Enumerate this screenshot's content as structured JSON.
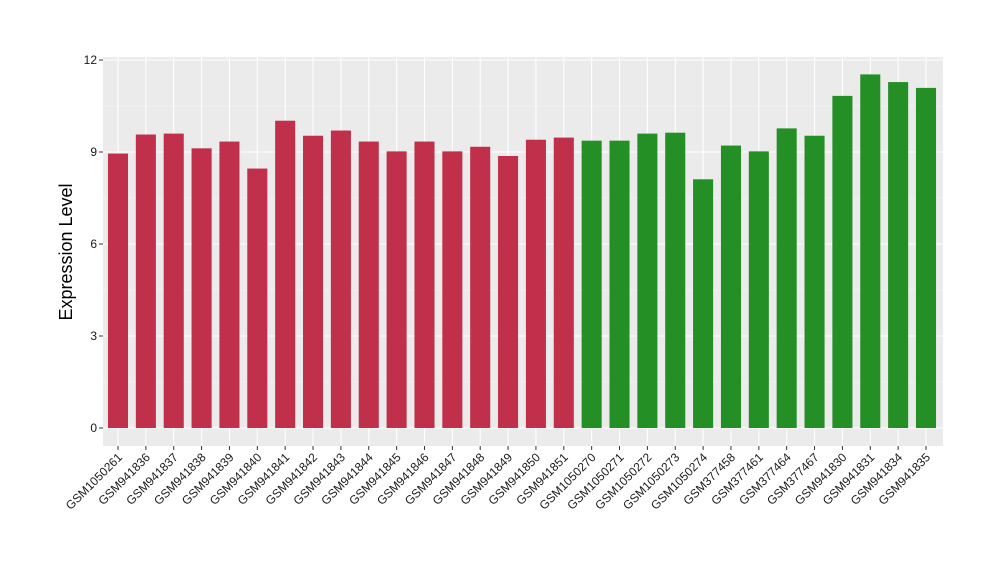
{
  "chart_data": {
    "type": "bar",
    "title": "",
    "xlabel": "",
    "ylabel": "Expression Level",
    "ylim": [
      0,
      12
    ],
    "yticks": [
      0,
      3,
      6,
      9,
      12
    ],
    "grid": true,
    "legend": "none",
    "colors": {
      "group_1": "#C0304A",
      "group_2": "#248F24",
      "panel_bg": "#EBEBEB",
      "grid_major": "#FFFFFF"
    },
    "categories": [
      "GSM1050261",
      "GSM941836",
      "GSM941837",
      "GSM941838",
      "GSM941839",
      "GSM941840",
      "GSM941841",
      "GSM941842",
      "GSM941843",
      "GSM941844",
      "GSM941845",
      "GSM941846",
      "GSM941847",
      "GSM941848",
      "GSM941849",
      "GSM941850",
      "GSM941851",
      "GSM1050270",
      "GSM1050271",
      "GSM1050272",
      "GSM1050273",
      "GSM1050274",
      "GSM377458",
      "GSM377461",
      "GSM377464",
      "GSM377467",
      "GSM941830",
      "GSM941831",
      "GSM941834",
      "GSM941835"
    ],
    "values": [
      8.95,
      9.57,
      9.6,
      9.12,
      9.34,
      8.46,
      10.02,
      9.53,
      9.7,
      9.34,
      9.02,
      9.34,
      9.02,
      9.17,
      8.87,
      9.4,
      9.47,
      9.37,
      9.37,
      9.6,
      9.63,
      8.11,
      9.21,
      9.02,
      9.77,
      9.53,
      10.83,
      11.53,
      11.28,
      11.09
    ],
    "bar_groups": [
      "group_1",
      "group_1",
      "group_1",
      "group_1",
      "group_1",
      "group_1",
      "group_1",
      "group_1",
      "group_1",
      "group_1",
      "group_1",
      "group_1",
      "group_1",
      "group_1",
      "group_1",
      "group_1",
      "group_1",
      "group_2",
      "group_2",
      "group_2",
      "group_2",
      "group_2",
      "group_2",
      "group_2",
      "group_2",
      "group_2",
      "group_2",
      "group_2",
      "group_2",
      "group_2"
    ]
  }
}
